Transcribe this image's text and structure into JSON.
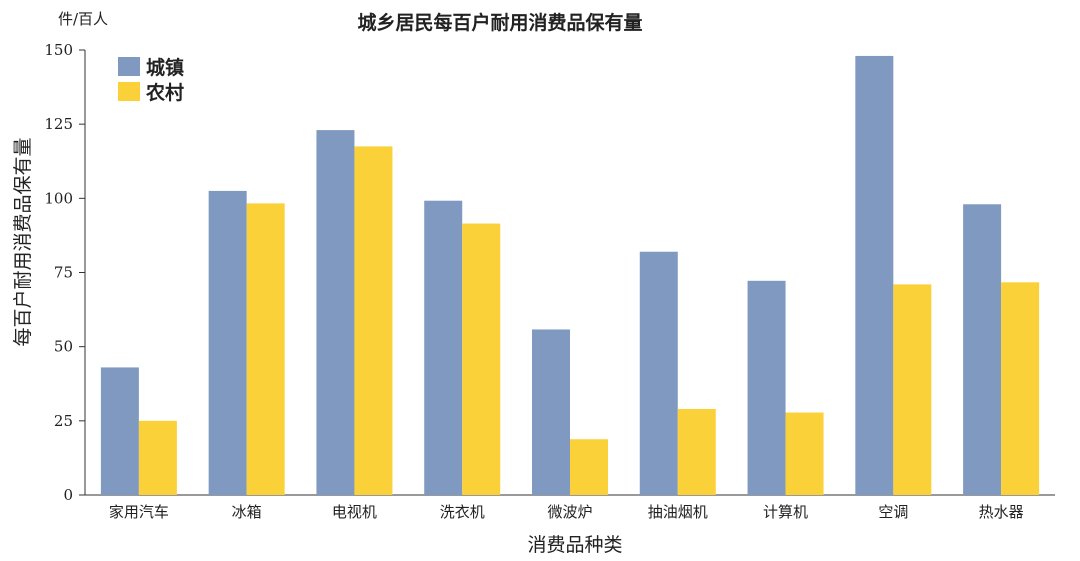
{
  "chart_data": {
    "type": "bar",
    "title": "城乡居民每百户耐用消费品保有量",
    "unit": "件/百人",
    "xlabel": "消费品种类",
    "ylabel": "每百户耐用消费品保有量",
    "ylim": [
      0,
      150
    ],
    "yticks": [
      0,
      25,
      50,
      75,
      100,
      125,
      150
    ],
    "grid": false,
    "legend_position": "top-left",
    "categories": [
      "家用汽车",
      "冰箱",
      "电视机",
      "洗衣机",
      "微波炉",
      "抽油烟机",
      "计算机",
      "空调",
      "热水器"
    ],
    "series": [
      {
        "name": "城镇",
        "color": "#7f99c0",
        "values": [
          43,
          102.5,
          123,
          99.2,
          55.8,
          82,
          72.2,
          148,
          98
        ]
      },
      {
        "name": "农村",
        "color": "#fbd13a",
        "values": [
          25,
          98.3,
          117.5,
          91.5,
          18.8,
          29,
          27.8,
          71,
          71.7
        ]
      }
    ]
  }
}
